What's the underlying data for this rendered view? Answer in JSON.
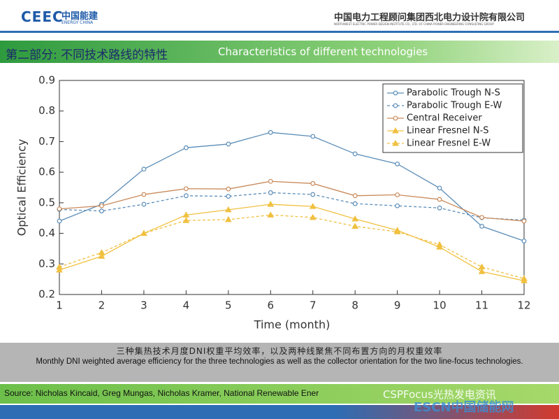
{
  "header": {
    "logo_mark": "CEEC",
    "logo_cn": "中国能建",
    "logo_en": "ENERGY CHINA",
    "org_cn": "中国电力工程顾问集团西北电力设计院有限公司",
    "org_en": "NORTHWEST ELECTRIC POWER DESIGN INSTITUTE CO., LTD. OF CHINA POWER ENGINEERING CONSULTING GROUP"
  },
  "section_title_cn": "第二部分: 不同技术路线的特性",
  "section_title_en": "Characteristics of different technologies",
  "caption_cn": "三种集热技术月度DNI权重平均效率，以及两种线聚焦不同布置方向的月权重效率",
  "caption_en": "Monthly DNI weighted average efficiency for the three technologies as well as the collector orientation for the two line-focus technologies.",
  "source": "Source: Nicholas Kincaid, Greg Mungas, Nicholas Kramer, National Renewable Ener",
  "watermarks": [
    "CSPFocus光热发电资讯",
    "ESCN中国储能网"
  ],
  "chart_data": {
    "type": "line",
    "x_label": "Time (month)",
    "y_label": "Optical Efficiency",
    "x": [
      1,
      2,
      3,
      4,
      5,
      6,
      7,
      8,
      9,
      10,
      11,
      12
    ],
    "xlim": [
      1,
      12
    ],
    "xticks": [
      1,
      2,
      3,
      4,
      5,
      6,
      7,
      8,
      9,
      10,
      11,
      12
    ],
    "ylim": [
      0.2,
      0.9
    ],
    "yticks": [
      0.2,
      0.3,
      0.4,
      0.5,
      0.6,
      0.7,
      0.8,
      0.9
    ],
    "legend": "upper right",
    "series": [
      {
        "name": "Parabolic Trough N-S",
        "color": "#5b8db8",
        "linestyle": "solid",
        "marker": "circle",
        "values": [
          0.44,
          0.495,
          0.61,
          0.68,
          0.692,
          0.73,
          0.717,
          0.66,
          0.627,
          0.548,
          0.423,
          0.375
        ]
      },
      {
        "name": "Parabolic Trough E-W",
        "color": "#5b8db8",
        "linestyle": "dashed",
        "marker": "circle",
        "values": [
          0.478,
          0.473,
          0.495,
          0.523,
          0.521,
          0.533,
          0.527,
          0.497,
          0.49,
          0.483,
          0.451,
          0.443
        ]
      },
      {
        "name": "Central Receiver",
        "color": "#c98a5a",
        "linestyle": "solid",
        "marker": "circle",
        "values": [
          0.48,
          0.49,
          0.527,
          0.546,
          0.545,
          0.57,
          0.563,
          0.523,
          0.526,
          0.511,
          0.452,
          0.44
        ]
      },
      {
        "name": "Linear Fresnel N-S",
        "color": "#f0c040",
        "linestyle": "solid",
        "marker": "triangle",
        "values": [
          0.28,
          0.325,
          0.4,
          0.46,
          0.477,
          0.495,
          0.488,
          0.447,
          0.41,
          0.355,
          0.275,
          0.245
        ]
      },
      {
        "name": "Linear Fresnel E-W",
        "color": "#f0c040",
        "linestyle": "dashed",
        "marker": "triangle",
        "values": [
          0.29,
          0.337,
          0.4,
          0.442,
          0.445,
          0.46,
          0.452,
          0.423,
          0.405,
          0.363,
          0.29,
          0.252
        ]
      }
    ]
  }
}
